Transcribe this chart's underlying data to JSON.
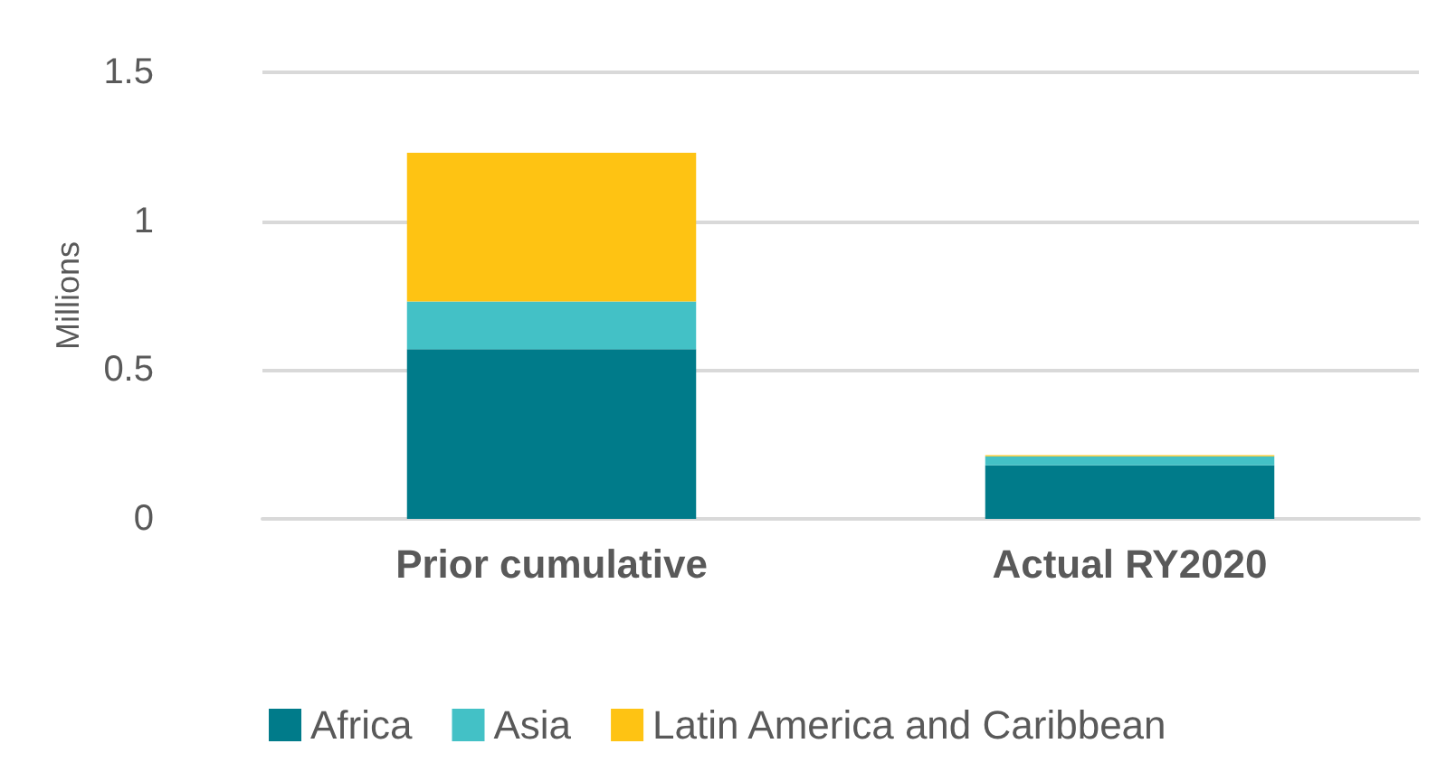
{
  "chart_data": {
    "type": "bar",
    "stacked": true,
    "ylabel": "Millions",
    "categories": [
      "Prior cumulative",
      "Actual RY2020"
    ],
    "series": [
      {
        "name": "Africa",
        "color": "#007b8a",
        "values": [
          0.57,
          0.18
        ]
      },
      {
        "name": "Asia",
        "color": "#43c1c6",
        "values": [
          0.16,
          0.03
        ]
      },
      {
        "name": "Latin America and Caribbean",
        "color": "#fec313",
        "values": [
          0.5,
          0.004
        ]
      }
    ],
    "ylim": [
      0,
      1.5
    ],
    "yticks": [
      0,
      0.5,
      1,
      1.5
    ],
    "grid": "y",
    "legend": "bottom"
  }
}
